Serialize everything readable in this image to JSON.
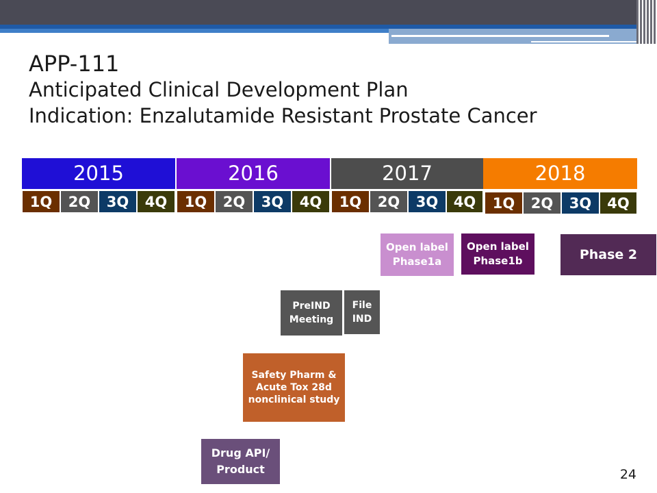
{
  "title": {
    "line1": "APP-111",
    "line2": "Anticipated Clinical Development Plan",
    "line3": "Indication: Enzalutamide Resistant Prostate Cancer"
  },
  "years": [
    {
      "label": "2015",
      "color": "#1f0fd6"
    },
    {
      "label": "2016",
      "color": "#6a0fd0"
    },
    {
      "label": "2017",
      "color": "#4d4d4d"
    },
    {
      "label": "2018",
      "color": "#f57c00"
    }
  ],
  "quarters": [
    "1Q",
    "2Q",
    "3Q",
    "4Q"
  ],
  "quarter_colors": [
    "#6b2f00",
    "#545454",
    "#0d3a66",
    "#3a3a0a"
  ],
  "activities": [
    {
      "name": "Open label\nPhase1a",
      "color": "#c98fcf"
    },
    {
      "name": "Open label\nPhase1b",
      "color": "#5e0f5e"
    },
    {
      "name": "Phase 2",
      "color": "#522a55"
    },
    {
      "name": "PreIND\nMeeting",
      "color": "#555555"
    },
    {
      "name": "File\nIND",
      "color": "#555555"
    },
    {
      "name": "Safety Pharm &\nAcute Tox 28d\nnonclinical study",
      "color": "#c0602a"
    },
    {
      "name": "Drug API/\nProduct",
      "color": "#6a4f7a"
    }
  ],
  "page_number": "24"
}
